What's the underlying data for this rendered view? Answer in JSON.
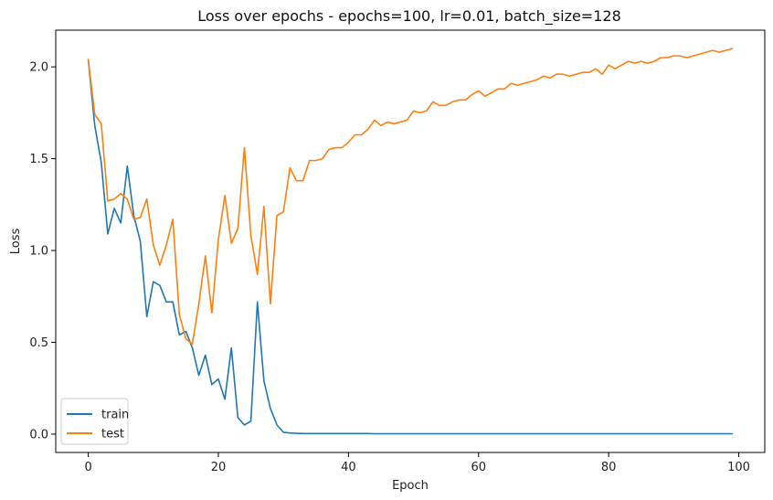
{
  "chart_data": {
    "type": "line",
    "title": "Loss over epochs - epochs=100, lr=0.01, batch_size=128",
    "xlabel": "Epoch",
    "ylabel": "Loss",
    "xlim": [
      -5,
      104
    ],
    "ylim": [
      -0.1,
      2.2
    ],
    "xticks": [
      0,
      20,
      40,
      60,
      80,
      100
    ],
    "yticks": [
      0.0,
      0.5,
      1.0,
      1.5,
      2.0
    ],
    "xtick_labels": [
      "0",
      "20",
      "40",
      "60",
      "80",
      "100"
    ],
    "ytick_labels": [
      "0.0",
      "0.5",
      "1.0",
      "1.5",
      "2.0"
    ],
    "grid": false,
    "legend_position": "lower-left",
    "series": [
      {
        "name": "train",
        "color": "#1f77b4",
        "x": [
          0,
          1,
          2,
          3,
          4,
          5,
          6,
          7,
          8,
          9,
          10,
          11,
          12,
          13,
          14,
          15,
          16,
          17,
          18,
          19,
          20,
          21,
          22,
          23,
          24,
          25,
          26,
          27,
          28,
          29,
          30,
          31,
          32,
          33,
          34,
          35,
          36,
          37,
          38,
          39,
          40,
          41,
          42,
          43,
          44,
          45,
          46,
          47,
          48,
          49,
          50,
          51,
          52,
          53,
          54,
          55,
          56,
          57,
          58,
          59,
          60,
          61,
          62,
          63,
          64,
          65,
          66,
          67,
          68,
          69,
          70,
          71,
          72,
          73,
          74,
          75,
          76,
          77,
          78,
          79,
          80,
          81,
          82,
          83,
          84,
          85,
          86,
          87,
          88,
          89,
          90,
          91,
          92,
          93,
          94,
          95,
          96,
          97,
          98,
          99
        ],
        "values": [
          2.04,
          1.68,
          1.48,
          1.09,
          1.23,
          1.15,
          1.46,
          1.19,
          1.05,
          0.64,
          0.83,
          0.81,
          0.72,
          0.72,
          0.54,
          0.56,
          0.47,
          0.32,
          0.43,
          0.27,
          0.3,
          0.19,
          0.47,
          0.09,
          0.05,
          0.07,
          0.72,
          0.29,
          0.14,
          0.05,
          0.01,
          0.006,
          0.004,
          0.003,
          0.003,
          0.003,
          0.003,
          0.003,
          0.003,
          0.003,
          0.003,
          0.003,
          0.003,
          0.003,
          0.002,
          0.002,
          0.002,
          0.002,
          0.002,
          0.002,
          0.002,
          0.002,
          0.002,
          0.002,
          0.002,
          0.002,
          0.002,
          0.002,
          0.002,
          0.002,
          0.002,
          0.002,
          0.002,
          0.002,
          0.002,
          0.002,
          0.002,
          0.002,
          0.002,
          0.002,
          0.002,
          0.002,
          0.002,
          0.002,
          0.002,
          0.002,
          0.002,
          0.002,
          0.002,
          0.002,
          0.002,
          0.002,
          0.002,
          0.002,
          0.002,
          0.002,
          0.002,
          0.002,
          0.002,
          0.002,
          0.002,
          0.002,
          0.002,
          0.002,
          0.002,
          0.002,
          0.002,
          0.002,
          0.002,
          0.002
        ]
      },
      {
        "name": "test",
        "color": "#ff7f0e",
        "x": [
          0,
          1,
          2,
          3,
          4,
          5,
          6,
          7,
          8,
          9,
          10,
          11,
          12,
          13,
          14,
          15,
          16,
          17,
          18,
          19,
          20,
          21,
          22,
          23,
          24,
          25,
          26,
          27,
          28,
          29,
          30,
          31,
          32,
          33,
          34,
          35,
          36,
          37,
          38,
          39,
          40,
          41,
          42,
          43,
          44,
          45,
          46,
          47,
          48,
          49,
          50,
          51,
          52,
          53,
          54,
          55,
          56,
          57,
          58,
          59,
          60,
          61,
          62,
          63,
          64,
          65,
          66,
          67,
          68,
          69,
          70,
          71,
          72,
          73,
          74,
          75,
          76,
          77,
          78,
          79,
          80,
          81,
          82,
          83,
          84,
          85,
          86,
          87,
          88,
          89,
          90,
          91,
          92,
          93,
          94,
          95,
          96,
          97,
          98,
          99
        ],
        "values": [
          2.04,
          1.74,
          1.69,
          1.27,
          1.28,
          1.31,
          1.28,
          1.17,
          1.18,
          1.28,
          1.03,
          0.92,
          1.03,
          1.17,
          0.65,
          0.52,
          0.49,
          0.71,
          0.97,
          0.66,
          1.06,
          1.3,
          1.04,
          1.12,
          1.56,
          1.08,
          0.87,
          1.24,
          0.71,
          1.19,
          1.21,
          1.45,
          1.38,
          1.38,
          1.49,
          1.49,
          1.5,
          1.55,
          1.56,
          1.56,
          1.59,
          1.63,
          1.63,
          1.66,
          1.71,
          1.68,
          1.7,
          1.69,
          1.7,
          1.71,
          1.76,
          1.75,
          1.76,
          1.81,
          1.79,
          1.79,
          1.81,
          1.82,
          1.82,
          1.85,
          1.87,
          1.84,
          1.86,
          1.88,
          1.88,
          1.91,
          1.9,
          1.91,
          1.92,
          1.93,
          1.95,
          1.94,
          1.96,
          1.96,
          1.95,
          1.96,
          1.97,
          1.97,
          1.99,
          1.96,
          2.01,
          1.99,
          2.01,
          2.03,
          2.02,
          2.03,
          2.02,
          2.03,
          2.05,
          2.05,
          2.06,
          2.06,
          2.05,
          2.06,
          2.07,
          2.08,
          2.09,
          2.08,
          2.09,
          2.1
        ]
      }
    ]
  }
}
